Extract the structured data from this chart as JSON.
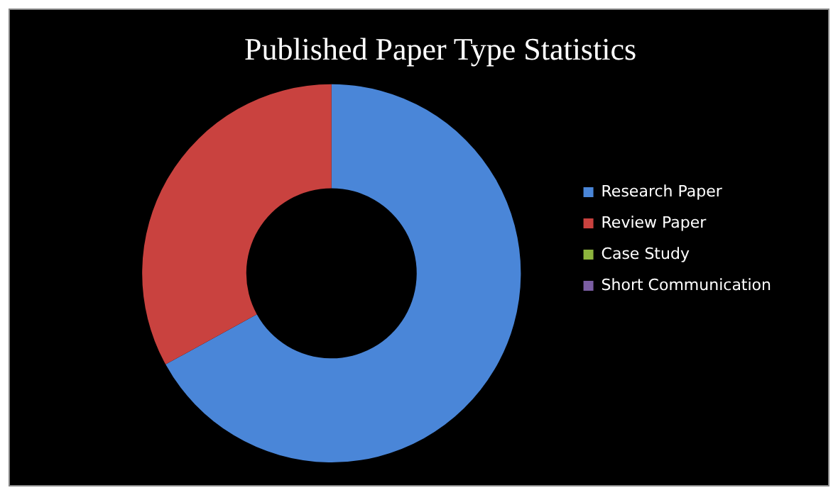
{
  "chart_data": {
    "type": "donut",
    "title": "Published Paper Type Statistics",
    "categories": [
      "Research Paper",
      "Review Paper",
      "Case Study",
      "Short Communication"
    ],
    "values": [
      67,
      33,
      0,
      0
    ],
    "colors": [
      "#4a86d8",
      "#c9423f",
      "#8db43d",
      "#7b5ea3"
    ],
    "legend": "right"
  }
}
